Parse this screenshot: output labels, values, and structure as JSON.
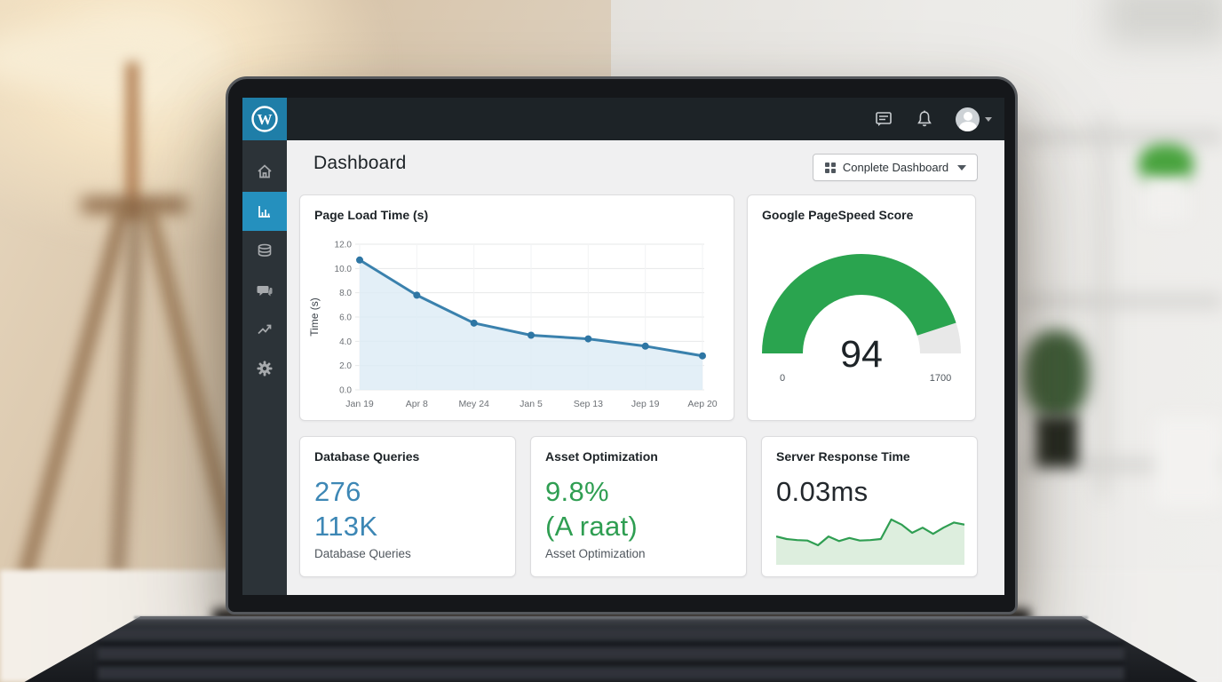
{
  "topbar": {
    "logo_letter": "W",
    "icons": [
      "comments-icon",
      "bell-icon",
      "avatar",
      "caret-down-icon"
    ]
  },
  "header": {
    "title": "Dashboard",
    "button_label": "Conplete Dashboard",
    "button_icon": "dashboard-grid-icon"
  },
  "sidebar": {
    "items": [
      {
        "icon": "home-icon",
        "active": false
      },
      {
        "icon": "bar-chart-icon",
        "active": true
      },
      {
        "icon": "database-icon",
        "active": false
      },
      {
        "icon": "comments-icon",
        "active": false
      },
      {
        "icon": "trending-up-icon",
        "active": false
      },
      {
        "icon": "gear-icon",
        "active": false
      }
    ]
  },
  "cards": {
    "page_load": {
      "title": "Page Load Time (s)"
    },
    "pagespeed": {
      "title": "Google PageSpeed Score",
      "value": "94",
      "min_label": "0",
      "max_label": "1700"
    },
    "db_queries": {
      "title": "Database Queries",
      "value1": "276",
      "value2": "113K",
      "subtitle": "Database Queries"
    },
    "asset_opt": {
      "title": "Asset Optimization",
      "value1": "9.8%",
      "value2": "(A raat)",
      "subtitle": "Asset Optimization"
    },
    "server_response": {
      "title": "Server Response Time",
      "value": "0.03ms"
    }
  },
  "chart_data": [
    {
      "type": "line",
      "title": "Page Load Time (s)",
      "xlabel": "",
      "ylabel": "Time (s)",
      "categories": [
        "Jan 19",
        "Apr 8",
        "Mey 24",
        "Jan 5",
        "Sep 13",
        "Jep 19",
        "Aep 20"
      ],
      "values": [
        10.7,
        7.8,
        5.5,
        4.5,
        4.2,
        3.6,
        2.8
      ],
      "ylim": [
        0,
        12
      ],
      "yticks": [
        0,
        2,
        4,
        6,
        8,
        10,
        12
      ],
      "ytick_labels": [
        "0.0",
        "2.0",
        "4.0",
        "6.0",
        "8.0",
        "10.0",
        "12.0"
      ],
      "grid": true,
      "area_fill": true,
      "line_color": "#3a81ad",
      "point_color": "#2e76a4",
      "fill_color": "#dcebf5",
      "legend": "none"
    },
    {
      "type": "gauge",
      "title": "Google PageSpeed Score",
      "value": 94,
      "min_label": "0",
      "max_label": "1700",
      "fill_fraction": 0.9,
      "arc_color": "#2aa44f",
      "track_color": "#e8e8e8"
    },
    {
      "type": "area",
      "title": "Server Response Time",
      "value_label": "0.03ms",
      "values": [
        0.55,
        0.5,
        0.48,
        0.47,
        0.38,
        0.55,
        0.46,
        0.52,
        0.47,
        0.48,
        0.5,
        0.88,
        0.78,
        0.62,
        0.72,
        0.6,
        0.72,
        0.82,
        0.78
      ],
      "line_color": "#2f9e52",
      "fill_color": "#ddeede",
      "legend": "none"
    }
  ],
  "colors": {
    "admin_bar": "#1d2327",
    "logo_bg": "#1f7ea8",
    "sidebar_bg": "#2c3338",
    "sidebar_active": "#2590be",
    "content_bg": "#f0f0f1",
    "stat_blue": "#3d87b5",
    "stat_green": "#2f9e52",
    "text_dark": "#1d2327",
    "text_gray": "#50575e"
  }
}
